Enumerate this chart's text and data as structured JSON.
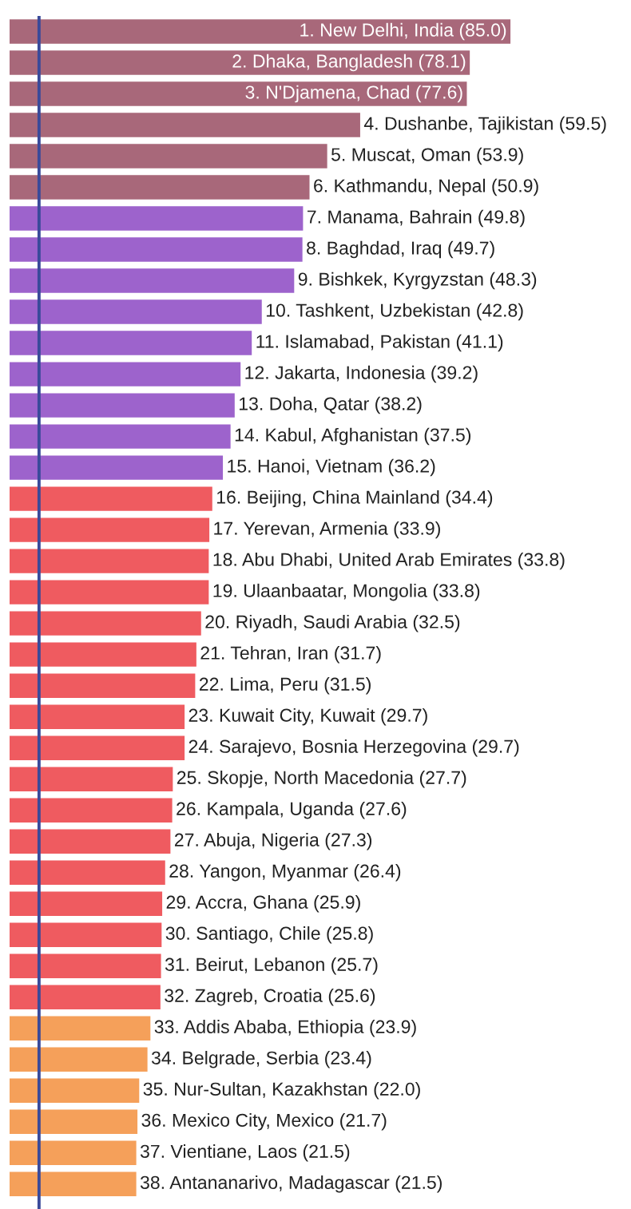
{
  "chart_data": {
    "type": "bar",
    "orientation": "horizontal",
    "categories": [
      null,
      null,
      null,
      null,
      null,
      null,
      null,
      null,
      null,
      null,
      null,
      null,
      null,
      null,
      null,
      null,
      null,
      null,
      null,
      null,
      null,
      null,
      null,
      null,
      null,
      null,
      null,
      null,
      null,
      null,
      null,
      null,
      null,
      null,
      null,
      null,
      null,
      null
    ],
    "values": [
      85.0,
      78.1,
      77.6,
      59.5,
      53.9,
      50.9,
      49.8,
      49.7,
      48.3,
      42.8,
      41.1,
      39.2,
      38.2,
      37.5,
      36.2,
      34.4,
      33.9,
      33.8,
      33.8,
      32.5,
      31.7,
      31.5,
      29.7,
      29.7,
      27.7,
      27.6,
      27.3,
      26.4,
      25.9,
      25.8,
      25.7,
      25.6,
      23.9,
      23.4,
      22.0,
      21.7,
      21.5,
      21.5
    ],
    "colors": [
      "#a8687a",
      "#a8687a",
      "#a8687a",
      "#a8687a",
      "#a8687a",
      "#a8687a",
      "#9d63cc",
      "#9d63cc",
      "#9d63cc",
      "#9d63cc",
      "#9d63cc",
      "#9d63cc",
      "#9d63cc",
      "#9d63cc",
      "#9d63cc",
      "#ef5b60",
      "#ef5b60",
      "#ef5b60",
      "#ef5b60",
      "#ef5b60",
      "#ef5b60",
      "#ef5b60",
      "#ef5b60",
      "#ef5b60",
      "#ef5b60",
      "#ef5b60",
      "#ef5b60",
      "#ef5b60",
      "#ef5b60",
      "#ef5b60",
      "#ef5b60",
      "#ef5b60",
      "#f5a05a",
      "#f5a05a",
      "#f5a05a",
      "#f5a05a",
      "#f5a05a",
      "#f5a05a"
    ],
    "value_labels": [
      "1. New Delhi, India (85.0)",
      "2. Dhaka, Bangladesh (78.1)",
      "3. N'Djamena, Chad (77.6)",
      "4. Dushanbe, Tajikistan (59.5)",
      "5. Muscat, Oman (53.9)",
      "6. Kathmandu, Nepal (50.9)",
      "7. Manama, Bahrain (49.8)",
      "8. Baghdad, Iraq (49.7)",
      "9. Bishkek, Kyrgyzstan (48.3)",
      "10. Tashkent, Uzbekistan (42.8)",
      "11. Islamabad, Pakistan (41.1)",
      "12. Jakarta, Indonesia (39.2)",
      "13. Doha, Qatar (38.2)",
      "14. Kabul, Afghanistan (37.5)",
      "15. Hanoi, Vietnam (36.2)",
      "16. Beijing, China Mainland (34.4)",
      "17. Yerevan, Armenia (33.9)",
      "18. Abu Dhabi, United Arab Emirates (33.8)",
      "19. Ulaanbaatar, Mongolia (33.8)",
      "20. Riyadh, Saudi Arabia (32.5)",
      "21. Tehran, Iran (31.7)",
      "22. Lima, Peru (31.5)",
      "23. Kuwait City, Kuwait (29.7)",
      "24. Sarajevo, Bosnia Herzegovina (29.7)",
      "25. Skopje, North Macedonia (27.7)",
      "26. Kampala, Uganda (27.6)",
      "27. Abuja, Nigeria (27.3)",
      "28. Yangon, Myanmar (26.4)",
      "29. Accra, Ghana (25.9)",
      "30. Santiago, Chile (25.8)",
      "31. Beirut, Lebanon (25.7)",
      "32. Zagreb, Croatia (25.6)",
      "33. Addis Ababa, Ethiopia (23.9)",
      "34. Belgrade, Serbia (23.4)",
      "35. Nur-Sultan, Kazakhstan (22.0)",
      "36. Mexico City, Mexico (21.7)",
      "37. Vientiane, Laos (21.5)",
      "38. Antananarivo, Madagascar (21.5)"
    ],
    "ref_lines": [
      {
        "axis": "x",
        "value": 5,
        "color": "#3a4a9a"
      }
    ]
  }
}
